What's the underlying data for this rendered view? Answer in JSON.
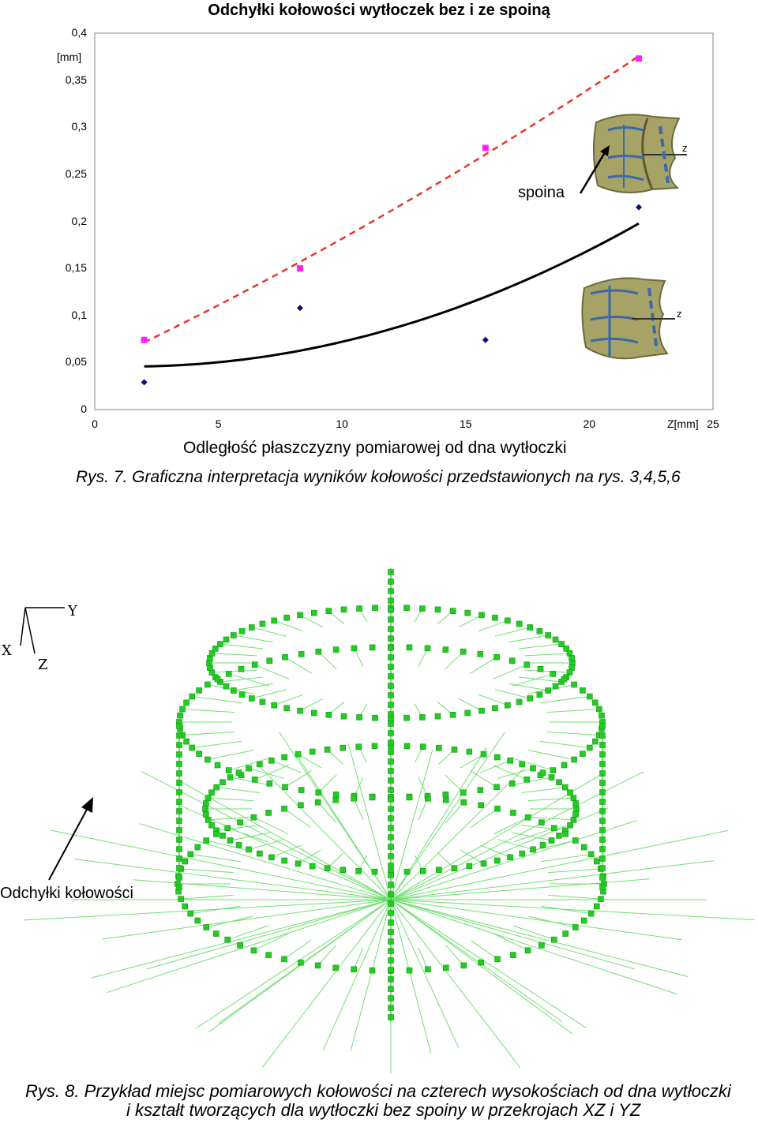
{
  "figure7": {
    "caption": "Rys. 7. Graficzna interpretacja wyników kołowości przedstawionych na rys. 3,4,5,6",
    "chart_data": {
      "type": "scatter",
      "title": "Odchyłki kołowości wytłoczek bez i ze spoiną",
      "xlabel": "Odległość płaszczyzny pomiarowej od dna wytłoczki",
      "x_unit": "Z[mm]",
      "y_unit": "[mm]",
      "xlim": [
        0,
        25
      ],
      "ylim": [
        0,
        0.4
      ],
      "x_ticks": [
        "0",
        "5",
        "10",
        "15",
        "20",
        "25"
      ],
      "y_ticks": [
        "0",
        "0,05",
        "0,1",
        "0,15",
        "0,2",
        "0,25",
        "0,3",
        "0,35",
        "0,4"
      ],
      "grid": false,
      "series": [
        {
          "marker": "square",
          "color": "#ff22ff",
          "x": [
            2,
            8.3,
            15.8,
            22
          ],
          "y": [
            0.074,
            0.15,
            0.278,
            0.373
          ],
          "trend": "dashed",
          "trend_color": "#e8342c"
        },
        {
          "marker": "diamond",
          "color": "#0a0a80",
          "x": [
            2,
            8.3,
            15.8,
            22
          ],
          "y": [
            0.029,
            0.108,
            0.074,
            0.215
          ],
          "trend": "solid",
          "trend_color": "#000000"
        }
      ],
      "annotation": "spoina"
    }
  },
  "figure8": {
    "axis_letters": {
      "x": "X",
      "y": "Y",
      "z": "Z"
    },
    "label": "Odchyłki kołowości",
    "caption_line1": "Rys. 8. Przykład miejsc pomiarowych kołowości na czterech wysokościach od dna wytłoczki",
    "caption_line2": "i kształt tworzących dla wytłoczki bez spoiny w przekrojach XZ i YZ",
    "point_color": "#22cc22",
    "line_color": "#6fe06f"
  },
  "photo_axis_letter": "z"
}
